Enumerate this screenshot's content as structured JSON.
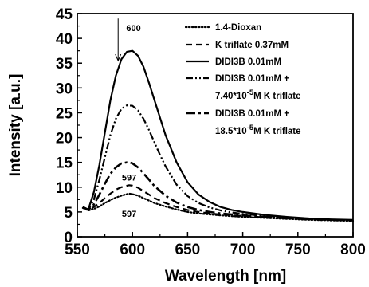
{
  "chart_data": {
    "type": "line",
    "xlabel": "Wavelength [nm]",
    "ylabel": "Intensity [a.u.]",
    "xlim": [
      550,
      800
    ],
    "ylim": [
      0,
      45
    ],
    "xticks": [
      550,
      600,
      650,
      700,
      750,
      800
    ],
    "yticks": [
      0,
      5,
      10,
      15,
      20,
      25,
      30,
      35,
      40,
      45
    ],
    "legend_position": "top-right",
    "series": [
      {
        "name": "1.4-Dioxan",
        "style": "dotted",
        "x": [
          555,
          560,
          565,
          570,
          575,
          580,
          585,
          590,
          595,
          597,
          600,
          605,
          610,
          615,
          620,
          630,
          640,
          650,
          660,
          670,
          680,
          700,
          720,
          740,
          760,
          780,
          800
        ],
        "y": [
          5.8,
          5.3,
          5.6,
          6.1,
          6.8,
          7.4,
          7.9,
          8.3,
          8.6,
          8.7,
          8.6,
          8.3,
          7.8,
          7.3,
          6.8,
          6.1,
          5.5,
          5.0,
          4.7,
          4.5,
          4.3,
          4.0,
          3.8,
          3.6,
          3.4,
          3.3,
          3.2
        ]
      },
      {
        "name": "K triflate 0.37mM",
        "style": "dashed",
        "x": [
          555,
          560,
          565,
          570,
          575,
          580,
          585,
          590,
          595,
          597,
          600,
          605,
          610,
          615,
          620,
          630,
          640,
          650,
          660,
          670,
          680,
          700,
          720,
          740,
          760,
          780,
          800
        ],
        "y": [
          6.0,
          5.4,
          6.0,
          6.8,
          7.8,
          8.7,
          9.5,
          10.0,
          10.3,
          10.4,
          10.3,
          9.9,
          9.2,
          8.5,
          7.8,
          6.8,
          6.0,
          5.4,
          5.0,
          4.7,
          4.5,
          4.2,
          3.9,
          3.7,
          3.5,
          3.4,
          3.3
        ]
      },
      {
        "name": "DIDI3B 0.01mM",
        "style": "solid",
        "x": [
          555,
          560,
          565,
          570,
          575,
          580,
          585,
          590,
          595,
          600,
          605,
          610,
          615,
          620,
          625,
          630,
          640,
          650,
          660,
          670,
          680,
          690,
          700,
          720,
          740,
          760,
          780,
          800
        ],
        "y": [
          6.0,
          5.5,
          9.0,
          14.5,
          21.0,
          27.5,
          32.5,
          35.8,
          37.3,
          37.5,
          36.5,
          34.3,
          31.0,
          27.5,
          24.0,
          20.5,
          15.0,
          11.0,
          8.5,
          7.0,
          6.0,
          5.4,
          5.0,
          4.4,
          4.0,
          3.7,
          3.5,
          3.4
        ]
      },
      {
        "name": "DIDI3B 0.01mM + 7.40*10-5M K triflate",
        "style": "dash-dot-dot",
        "x": [
          555,
          560,
          565,
          570,
          575,
          580,
          585,
          590,
          595,
          600,
          605,
          610,
          615,
          620,
          625,
          630,
          640,
          650,
          660,
          670,
          680,
          690,
          700,
          720,
          740,
          760,
          780,
          800
        ],
        "y": [
          6.0,
          5.4,
          7.5,
          11.5,
          16.0,
          20.5,
          23.8,
          25.8,
          26.5,
          26.4,
          25.5,
          23.8,
          21.5,
          19.0,
          16.5,
          14.2,
          10.5,
          8.2,
          6.8,
          5.9,
          5.3,
          4.9,
          4.6,
          4.2,
          3.9,
          3.6,
          3.4,
          3.3
        ]
      },
      {
        "name": "DIDI3B 0.01mM + 18.5*10-5M K triflate",
        "style": "long-dash-dot",
        "x": [
          555,
          560,
          565,
          570,
          575,
          580,
          585,
          590,
          595,
          597,
          600,
          605,
          610,
          615,
          620,
          630,
          640,
          650,
          660,
          670,
          680,
          700,
          720,
          740,
          760,
          780,
          800
        ],
        "y": [
          6.0,
          5.4,
          6.5,
          8.5,
          10.7,
          12.7,
          14.0,
          14.8,
          15.0,
          15.0,
          14.8,
          14.0,
          12.8,
          11.5,
          10.2,
          8.3,
          6.9,
          6.0,
          5.4,
          5.0,
          4.7,
          4.3,
          4.0,
          3.8,
          3.6,
          3.4,
          3.3
        ]
      }
    ],
    "legend_labels": [
      {
        "line1": "1.4-Dioxan"
      },
      {
        "line1": "K triflate 0.37mM"
      },
      {
        "line1": "DIDI3B 0.01mM"
      },
      {
        "line1": "DIDI3B 0.01mM +",
        "line2_pre": "7.40*10",
        "line2_sup": "-5",
        "line2_post": "M K triflate"
      },
      {
        "line1": "DIDI3B 0.01mM +",
        "line2_pre": "18.5*10",
        "line2_sup": "-5",
        "line2_post": "M K triflate"
      }
    ],
    "annotations": [
      {
        "text": "600",
        "x": 601,
        "y": 41.5,
        "arrow": {
          "x": 587,
          "from_y": 44,
          "to_y": 35.5
        }
      },
      {
        "text": "597",
        "x": 597,
        "y": 11.3
      },
      {
        "text": "597",
        "x": 597,
        "y": 4.0
      }
    ]
  }
}
